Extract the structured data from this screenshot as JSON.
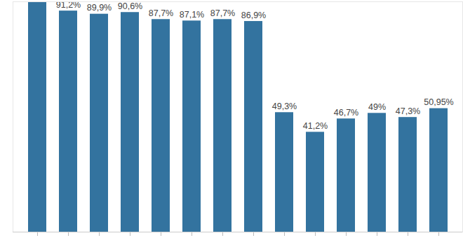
{
  "chart_data": {
    "type": "bar",
    "categories": [
      null,
      null,
      null,
      null,
      null,
      null,
      null,
      null,
      null,
      null,
      null,
      null,
      null,
      null
    ],
    "values": [
      94.7,
      91.2,
      89.9,
      90.6,
      87.7,
      87.1,
      87.7,
      86.9,
      49.3,
      41.2,
      46.7,
      49,
      47.3,
      50.95
    ],
    "value_labels": [
      null,
      "91,2%",
      "89,9%",
      "90,6%",
      "87,7%",
      "87,1%",
      "87,7%",
      "86,9%",
      "49,3%",
      "41,2%",
      "46,7%",
      "49%",
      "47,3%",
      "50,95%"
    ],
    "color": "#33739f",
    "ylim": [
      0,
      95
    ],
    "yticks": [],
    "grid": false,
    "data_labels": true,
    "tick_labels": false
  }
}
